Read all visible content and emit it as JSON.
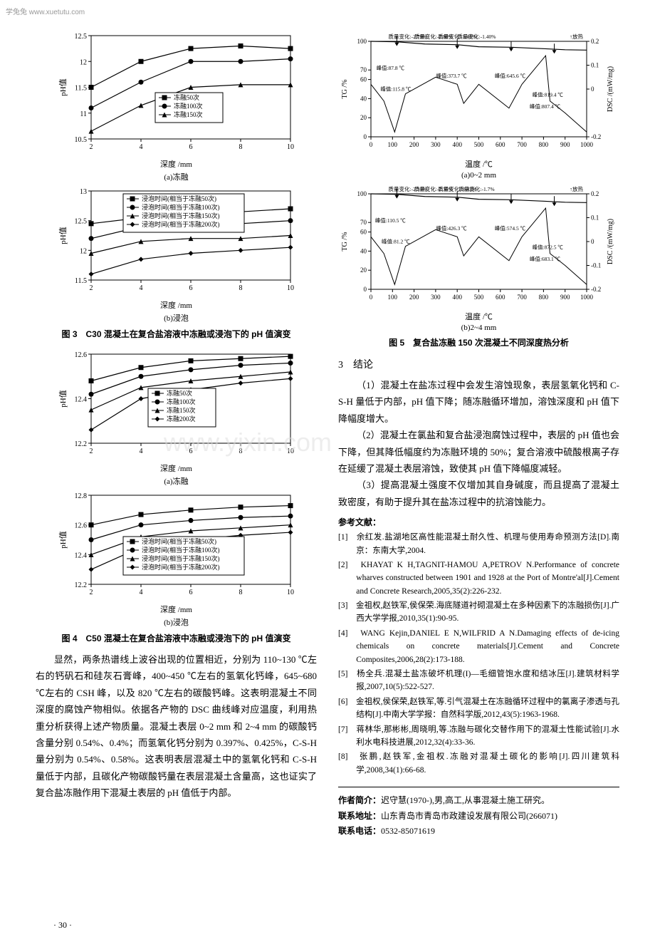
{
  "watermarks": {
    "top": "学兔兔  www.xuetutu.com",
    "center": "www.yixin.com"
  },
  "fig3": {
    "caption": "图 3　C30 混凝土在复合盐溶液中冻融或浸泡下的 pH 值演变",
    "sub_a": "(a)冻融",
    "sub_b": "(b)浸泡",
    "xlabel": "深度 /mm",
    "ylabel": "pH值",
    "chart_a": {
      "xlim": [
        2,
        10
      ],
      "xticks": [
        2,
        4,
        6,
        8,
        10
      ],
      "ylim": [
        10.5,
        12.5
      ],
      "yticks": [
        10.5,
        11.0,
        11.5,
        12.0,
        12.5
      ],
      "legend": [
        "冻融50次",
        "冻融100次",
        "冻融150次"
      ],
      "markers": [
        "square",
        "circle",
        "triangle"
      ],
      "series": [
        {
          "x": [
            2,
            4,
            6,
            8,
            10
          ],
          "y": [
            11.5,
            12.0,
            12.25,
            12.3,
            12.25
          ]
        },
        {
          "x": [
            2,
            4,
            6,
            8,
            10
          ],
          "y": [
            11.1,
            11.6,
            12.0,
            12.0,
            12.05
          ]
        },
        {
          "x": [
            2,
            4,
            6,
            8,
            10
          ],
          "y": [
            10.65,
            11.15,
            11.5,
            11.55,
            11.55
          ]
        }
      ],
      "label_fontsize": 10
    },
    "chart_b": {
      "xlim": [
        2,
        10
      ],
      "xticks": [
        2,
        4,
        6,
        8,
        10
      ],
      "ylim": [
        11.5,
        13.0
      ],
      "yticks": [
        11.5,
        12.0,
        12.5,
        13.0
      ],
      "legend": [
        "浸泡时间(相当于冻融50次)",
        "浸泡时间(相当于冻融100次)",
        "浸泡时间(相当于冻融150次)",
        "浸泡时间(相当于冻融200次)"
      ],
      "markers": [
        "square",
        "circle",
        "triangle",
        "diamond"
      ],
      "series": [
        {
          "x": [
            2,
            4,
            6,
            8,
            10
          ],
          "y": [
            12.45,
            12.55,
            12.6,
            12.65,
            12.7
          ]
        },
        {
          "x": [
            2,
            4,
            6,
            8,
            10
          ],
          "y": [
            12.2,
            12.4,
            12.45,
            12.45,
            12.5
          ]
        },
        {
          "x": [
            2,
            4,
            6,
            8,
            10
          ],
          "y": [
            11.95,
            12.15,
            12.2,
            12.2,
            12.25
          ]
        },
        {
          "x": [
            2,
            4,
            6,
            8,
            10
          ],
          "y": [
            11.6,
            11.85,
            11.95,
            12.0,
            12.05
          ]
        }
      ],
      "label_fontsize": 10
    }
  },
  "fig4": {
    "caption": "图 4　C50 混凝土在复合盐溶液中冻融或浸泡下的 pH 值演变",
    "sub_a": "(a)冻融",
    "sub_b": "(b)浸泡",
    "xlabel": "深度 /mm",
    "ylabel": "pH值",
    "chart_a": {
      "xlim": [
        2,
        10
      ],
      "xticks": [
        2,
        4,
        6,
        8,
        10
      ],
      "ylim": [
        12.2,
        12.6
      ],
      "yticks": [
        12.2,
        12.4,
        12.6
      ],
      "legend": [
        "冻融50次",
        "冻融100次",
        "冻融150次",
        "冻融200次"
      ],
      "markers": [
        "square",
        "circle",
        "triangle",
        "diamond"
      ],
      "series": [
        {
          "x": [
            2,
            4,
            6,
            8,
            10
          ],
          "y": [
            12.48,
            12.54,
            12.57,
            12.58,
            12.59
          ]
        },
        {
          "x": [
            2,
            4,
            6,
            8,
            10
          ],
          "y": [
            12.42,
            12.5,
            12.53,
            12.55,
            12.56
          ]
        },
        {
          "x": [
            2,
            4,
            6,
            8,
            10
          ],
          "y": [
            12.35,
            12.45,
            12.48,
            12.5,
            12.52
          ]
        },
        {
          "x": [
            2,
            4,
            6,
            8,
            10
          ],
          "y": [
            12.26,
            12.4,
            12.44,
            12.47,
            12.49
          ]
        }
      ]
    },
    "chart_b": {
      "xlim": [
        2,
        10
      ],
      "xticks": [
        2,
        4,
        6,
        8,
        10
      ],
      "ylim": [
        12.2,
        12.8
      ],
      "yticks": [
        12.2,
        12.4,
        12.6,
        12.8
      ],
      "legend": [
        "浸泡时间(相当于冻融50次)",
        "浸泡时间(相当于冻融100次)",
        "浸泡时间(相当于冻融150次)",
        "浸泡时间(相当于冻融200次)"
      ],
      "markers": [
        "square",
        "circle",
        "triangle",
        "diamond"
      ],
      "series": [
        {
          "x": [
            2,
            4,
            6,
            8,
            10
          ],
          "y": [
            12.6,
            12.67,
            12.7,
            12.72,
            12.73
          ]
        },
        {
          "x": [
            2,
            4,
            6,
            8,
            10
          ],
          "y": [
            12.5,
            12.6,
            12.63,
            12.65,
            12.66
          ]
        },
        {
          "x": [
            2,
            4,
            6,
            8,
            10
          ],
          "y": [
            12.4,
            12.52,
            12.56,
            12.58,
            12.6
          ]
        },
        {
          "x": [
            2,
            4,
            6,
            8,
            10
          ],
          "y": [
            12.3,
            12.45,
            12.5,
            12.53,
            12.55
          ]
        }
      ]
    }
  },
  "fig5": {
    "caption": "图 5　复合盐冻融 150 次混凝土不同深度热分析",
    "sub_a": "(a)0~2 mm",
    "sub_b": "(b)2~4 mm",
    "xlabel": "温度 /℃",
    "ylabel_left": "TG /%",
    "ylabel_right": "DSC /(mW/mg)",
    "chart_a": {
      "xlim": [
        0,
        1000
      ],
      "xticks": [
        0,
        100,
        200,
        300,
        400,
        500,
        600,
        700,
        800,
        900,
        1000
      ],
      "ylim_left": [
        0,
        100
      ],
      "yticks_left": [
        0,
        20,
        40,
        60,
        70,
        100
      ],
      "ylim_right": [
        -0.2,
        0.2
      ],
      "yticks_right": [
        -0.2,
        0,
        0.1,
        0.2
      ],
      "top_labels": [
        "质量变化:-2.79%",
        "质量变化:-2.80%",
        "质量变化:-1.41%",
        "质量变化:-1.40%",
        "↑放热"
      ],
      "peak_labels": [
        "峰值:115.8 ℃",
        "峰值:87.8 ℃",
        "峰值:373.7 ℃",
        "峰值:645.6 ℃",
        "峰值:807.4 ℃",
        "峰值:819.4 ℃"
      ]
    },
    "chart_b": {
      "xlim": [
        0,
        1000
      ],
      "xticks": [
        0,
        100,
        200,
        300,
        400,
        500,
        600,
        700,
        800,
        900,
        1000
      ],
      "ylim_left": [
        0,
        100
      ],
      "yticks_left": [
        0,
        20,
        40,
        60,
        70,
        100
      ],
      "ylim_right": [
        -0.2,
        0.2
      ],
      "yticks_right": [
        -0.2,
        -0.1,
        0,
        0.1,
        0.2
      ],
      "top_labels": [
        "质量变化:-2.31%",
        "质量变化:-2.35%",
        "质量变化:-0.42%",
        "质量变化:-1.7%",
        "↑放热"
      ],
      "peak_labels": [
        "峰值:81.2 ℃",
        "峰值:110.5 ℃",
        "峰值:426.3 ℃",
        "峰值:574.5 ℃",
        "峰值:683.1 ℃",
        "峰值:872.5 ℃"
      ]
    }
  },
  "body_left": "显然，两条热谱线上波谷出现的位置相近，分别为 110~130 ℃左右的钙矾石和硅灰石膏峰，400~450 ℃左右的氢氧化钙峰，645~680 ℃左右的 CSH 峰，以及 820 ℃左右的碳酸钙峰。这表明混凝土不同深度的腐蚀产物相似。依据各产物的 DSC 曲线峰对应温度，利用热重分析获得上述产物质量。混凝土表层 0~2 mm 和 2~4 mm 的碳酸钙含量分别 0.54%、0.4%；而氢氧化钙分别为 0.397%、0.425%，C-S-H 量分别为 0.54%、0.58%。这表明表层混凝土中的氢氧化钙和 C-S-H 量低于内部，且碳化产物碳酸钙量在表层混凝土含量高，这也证实了复合盐冻融作用下混凝土表层的 pH 值低于内部。",
  "section3": {
    "title": "3　结论",
    "p1": "（1）混凝土在盐冻过程中会发生溶蚀现象，表层氢氧化钙和 C-S-H 量低于内部，pH 值下降；随冻融循环增加，溶蚀深度和 pH 值下降幅度增大。",
    "p2": "（2）混凝土在氯盐和复合盐浸泡腐蚀过程中，表层的 pH 值也会下降，但其降低幅度约为冻融环境的 50%；复合溶液中硫酸根离子存在延缓了混凝土表层溶蚀，致使其 pH 值下降幅度减轻。",
    "p3": "（3）提高混凝土强度不仅增加其自身碱度，而且提高了混凝土致密度，有助于提升其在盐冻过程中的抗溶蚀能力。"
  },
  "refs_title": "参考文献：",
  "refs": [
    "[1]　余红发.盐湖地区高性能混凝土耐久性、机理与使用寿命预测方法[D].南京：东南大学,2004.",
    "[2]　KHAYAT K H,TAGNIT-HAMOU A,PETROV N.Performance of concrete wharves constructed between 1901 and 1928 at the Port of Montre'al[J].Cement and Concrete Research,2005,35(2):226-232.",
    "[3]　金祖权,赵铁军,侯保荣.海底隧道衬砌混凝土在多种因素下的冻融损伤[J].广西大学学报,2010,35(1):90-95.",
    "[4]　WANG Kejin,DANIEL E N,WILFRID A N.Damaging effects of de-icing chemicals on concrete materials[J].Cement and Concrete Composites,2006,28(2):173-188.",
    "[5]　杨全兵.混凝土盐冻破坏机理(I)—毛细管饱水度和结冰压[J].建筑材料学报,2007,10(5):522-527.",
    "[6]　金祖权,侯保荣,赵铁军,等.引气混凝土在冻融循环过程中的氯离子渗透与孔结构[J].中南大学学报：自然科学版,2012,43(5):1963-1968.",
    "[7]　蒋林华,那彬彬,周晓明,等.冻融与碳化交替作用下的混凝土性能试验[J].水利水电科技进展,2012,32(4):33-36.",
    "[8]　张鹏,赵铁军,金祖权.冻融对混凝土碳化的影响[J].四川建筑科学,2008,34(1):66-68."
  ],
  "author": {
    "intro_label": "作者简介：",
    "intro": "迟守慧(1970-),男,高工,从事混凝土施工研究。",
    "addr_label": "联系地址：",
    "addr": "山东青岛市青岛市政建设发展有限公司(266071)",
    "tel_label": "联系电话：",
    "tel": "0532-85071619"
  },
  "page_num": "· 30 ·",
  "colors": {
    "line": "#000000",
    "text": "#000000",
    "bg": "#ffffff"
  }
}
